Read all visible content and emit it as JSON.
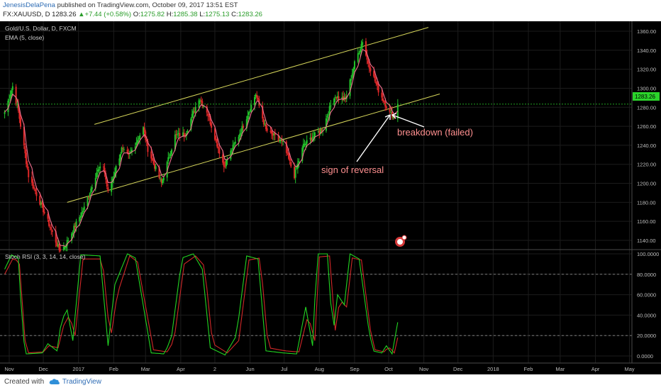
{
  "header": {
    "author": "JenesisDelaPena",
    "published_text": " published on TradingView.com, October 09, 2017 13:51 EST",
    "symbol": "FX:XAUUSD, D",
    "last": "1283.26",
    "change": "+7.44 (+0.58%)",
    "open_label": "O:",
    "open": "1275.82",
    "high_label": "H:",
    "high": "1285.38",
    "low_label": "L:",
    "low": "1275.13",
    "close_label": "C:",
    "close": "1283.26"
  },
  "legend": {
    "instrument": "Gold/U.S. Dollar, D, FXCM",
    "ema": "EMA (5, close)",
    "stoch": "Stoch RSI (3, 3, 14, 14, close)"
  },
  "annotations": {
    "breakdown": "breakdown (failed)",
    "reversal": "sign of reversal"
  },
  "price_badge": "1283.26",
  "footer": {
    "created_with": "Created with",
    "brand": "TradingView"
  },
  "colors": {
    "up": "#22c32a",
    "down": "#e02828",
    "ema": "#f07090",
    "channel": "#d6d65a",
    "stoch_k": "#22d422",
    "stoch_d": "#d02828",
    "annotation": "#ff9090",
    "badge": "#2bd42b"
  },
  "chart_data": [
    {
      "type": "candlestick",
      "title": "Gold/U.S. Dollar, D, FXCM",
      "y_ticks": [
        1140,
        1160,
        1180,
        1200,
        1220,
        1240,
        1260,
        1280,
        1300,
        1320,
        1340,
        1360
      ],
      "y_tick_labels": [
        "1140.00",
        "1160.00",
        "1180.00",
        "1200.00",
        "1220.00",
        "1240.00",
        "1260.00",
        "1280.00",
        "1300.00",
        "1320.00",
        "1340.00",
        "1360.00"
      ],
      "ylim": [
        1110,
        1372
      ],
      "x_tick_labels": [
        "Nov",
        "Dec",
        "2017",
        "Feb",
        "Mar",
        "Apr",
        "2",
        "Jun",
        "Jul",
        "Aug",
        "Sep",
        "Oct",
        "Nov",
        "Dec",
        "2018",
        "Feb",
        "Mar",
        "Apr",
        "May"
      ],
      "last_value": 1283.26,
      "close_anchors": [
        {
          "x": "2016-10-28",
          "y": 1275
        },
        {
          "x": "2016-11-04",
          "y": 1302
        },
        {
          "x": "2016-11-09",
          "y": 1276
        },
        {
          "x": "2016-11-18",
          "y": 1208
        },
        {
          "x": "2016-12-01",
          "y": 1172
        },
        {
          "x": "2016-12-15",
          "y": 1130
        },
        {
          "x": "2016-12-20",
          "y": 1134
        },
        {
          "x": "2017-01-06",
          "y": 1174
        },
        {
          "x": "2017-01-17",
          "y": 1212
        },
        {
          "x": "2017-01-23",
          "y": 1218
        },
        {
          "x": "2017-01-27",
          "y": 1190
        },
        {
          "x": "2017-02-08",
          "y": 1236
        },
        {
          "x": "2017-02-14",
          "y": 1228
        },
        {
          "x": "2017-02-27",
          "y": 1258
        },
        {
          "x": "2017-03-03",
          "y": 1236
        },
        {
          "x": "2017-03-15",
          "y": 1200
        },
        {
          "x": "2017-03-27",
          "y": 1250
        },
        {
          "x": "2017-04-05",
          "y": 1252
        },
        {
          "x": "2017-04-17",
          "y": 1290
        },
        {
          "x": "2017-04-24",
          "y": 1276
        },
        {
          "x": "2017-05-09",
          "y": 1218
        },
        {
          "x": "2017-05-25",
          "y": 1258
        },
        {
          "x": "2017-06-06",
          "y": 1294
        },
        {
          "x": "2017-06-15",
          "y": 1256
        },
        {
          "x": "2017-06-30",
          "y": 1242
        },
        {
          "x": "2017-07-10",
          "y": 1208
        },
        {
          "x": "2017-07-18",
          "y": 1240
        },
        {
          "x": "2017-08-04",
          "y": 1258
        },
        {
          "x": "2017-08-14",
          "y": 1292
        },
        {
          "x": "2017-08-24",
          "y": 1288
        },
        {
          "x": "2017-09-01",
          "y": 1326
        },
        {
          "x": "2017-09-08",
          "y": 1350
        },
        {
          "x": "2017-09-12",
          "y": 1330
        },
        {
          "x": "2017-09-22",
          "y": 1298
        },
        {
          "x": "2017-10-02",
          "y": 1274
        },
        {
          "x": "2017-10-06",
          "y": 1270
        },
        {
          "x": "2017-10-09",
          "y": 1283
        }
      ],
      "channel_lines": [
        {
          "name": "upper",
          "points": [
            {
              "x": "2017-01-15",
              "y": 1262
            },
            {
              "x": "2017-11-05",
              "y": 1364
            }
          ]
        },
        {
          "name": "lower",
          "points": [
            {
              "x": "2016-12-22",
              "y": 1180
            },
            {
              "x": "2017-11-15",
              "y": 1294
            }
          ]
        }
      ],
      "current_price_line": 1283.26,
      "ema": {
        "period": 5
      }
    },
    {
      "type": "line",
      "title": "Stoch RSI (3, 3, 14, 14, close)",
      "y_ticks": [
        0,
        20,
        40,
        60,
        80,
        100
      ],
      "y_tick_labels": [
        "0.0000",
        "20.0000",
        "40.0000",
        "60.0000",
        "80.0000",
        "100.0000"
      ],
      "ylim": [
        -3,
        103
      ],
      "reference_lines": [
        20,
        80
      ],
      "k_anchors": [
        {
          "x": "2016-10-28",
          "y": 85
        },
        {
          "x": "2016-11-03",
          "y": 99
        },
        {
          "x": "2016-11-09",
          "y": 96
        },
        {
          "x": "2016-11-13",
          "y": 20
        },
        {
          "x": "2016-11-16",
          "y": 2
        },
        {
          "x": "2016-11-30",
          "y": 3
        },
        {
          "x": "2016-12-05",
          "y": 12
        },
        {
          "x": "2016-12-13",
          "y": 5
        },
        {
          "x": "2016-12-17",
          "y": 35
        },
        {
          "x": "2016-12-22",
          "y": 45
        },
        {
          "x": "2016-12-27",
          "y": 15
        },
        {
          "x": "2017-01-03",
          "y": 99
        },
        {
          "x": "2017-01-20",
          "y": 98
        },
        {
          "x": "2017-01-27",
          "y": 10
        },
        {
          "x": "2017-02-02",
          "y": 70
        },
        {
          "x": "2017-02-13",
          "y": 100
        },
        {
          "x": "2017-02-20",
          "y": 96
        },
        {
          "x": "2017-03-06",
          "y": 3
        },
        {
          "x": "2017-03-18",
          "y": 2
        },
        {
          "x": "2017-03-24",
          "y": 20
        },
        {
          "x": "2017-04-02",
          "y": 96
        },
        {
          "x": "2017-04-12",
          "y": 100
        },
        {
          "x": "2017-04-20",
          "y": 85
        },
        {
          "x": "2017-04-27",
          "y": 8
        },
        {
          "x": "2017-05-10",
          "y": 1
        },
        {
          "x": "2017-05-20",
          "y": 20
        },
        {
          "x": "2017-05-29",
          "y": 98
        },
        {
          "x": "2017-06-08",
          "y": 95
        },
        {
          "x": "2017-06-15",
          "y": 5
        },
        {
          "x": "2017-06-30",
          "y": 3
        },
        {
          "x": "2017-07-12",
          "y": 2
        },
        {
          "x": "2017-07-20",
          "y": 48
        },
        {
          "x": "2017-07-26",
          "y": 10
        },
        {
          "x": "2017-07-30",
          "y": 100
        },
        {
          "x": "2017-08-08",
          "y": 100
        },
        {
          "x": "2017-08-13",
          "y": 20
        },
        {
          "x": "2017-08-17",
          "y": 60
        },
        {
          "x": "2017-08-23",
          "y": 50
        },
        {
          "x": "2017-08-28",
          "y": 100
        },
        {
          "x": "2017-09-05",
          "y": 95
        },
        {
          "x": "2017-09-13",
          "y": 30
        },
        {
          "x": "2017-09-17",
          "y": 5
        },
        {
          "x": "2017-09-25",
          "y": 3
        },
        {
          "x": "2017-09-29",
          "y": 10
        },
        {
          "x": "2017-10-04",
          "y": 2
        },
        {
          "x": "2017-10-09",
          "y": 33
        }
      ],
      "d_anchors": [
        {
          "x": "2016-10-28",
          "y": 80
        },
        {
          "x": "2016-11-05",
          "y": 97
        },
        {
          "x": "2016-11-10",
          "y": 90
        },
        {
          "x": "2016-11-15",
          "y": 15
        },
        {
          "x": "2016-11-18",
          "y": 3
        },
        {
          "x": "2016-12-01",
          "y": 4
        },
        {
          "x": "2016-12-06",
          "y": 10
        },
        {
          "x": "2016-12-14",
          "y": 8
        },
        {
          "x": "2016-12-19",
          "y": 30
        },
        {
          "x": "2016-12-24",
          "y": 40
        },
        {
          "x": "2016-12-29",
          "y": 20
        },
        {
          "x": "2017-01-05",
          "y": 95
        },
        {
          "x": "2017-01-22",
          "y": 95
        },
        {
          "x": "2017-01-29",
          "y": 15
        },
        {
          "x": "2017-02-04",
          "y": 60
        },
        {
          "x": "2017-02-15",
          "y": 98
        },
        {
          "x": "2017-02-22",
          "y": 92
        },
        {
          "x": "2017-03-08",
          "y": 6
        },
        {
          "x": "2017-03-20",
          "y": 4
        },
        {
          "x": "2017-03-26",
          "y": 15
        },
        {
          "x": "2017-04-04",
          "y": 90
        },
        {
          "x": "2017-04-14",
          "y": 98
        },
        {
          "x": "2017-04-22",
          "y": 88
        },
        {
          "x": "2017-04-29",
          "y": 12
        },
        {
          "x": "2017-05-12",
          "y": 3
        },
        {
          "x": "2017-05-22",
          "y": 15
        },
        {
          "x": "2017-05-31",
          "y": 94
        },
        {
          "x": "2017-06-10",
          "y": 96
        },
        {
          "x": "2017-06-17",
          "y": 8
        },
        {
          "x": "2017-07-02",
          "y": 5
        },
        {
          "x": "2017-07-14",
          "y": 4
        },
        {
          "x": "2017-07-22",
          "y": 40
        },
        {
          "x": "2017-07-28",
          "y": 15
        },
        {
          "x": "2017-08-01",
          "y": 97
        },
        {
          "x": "2017-08-10",
          "y": 98
        },
        {
          "x": "2017-08-15",
          "y": 25
        },
        {
          "x": "2017-08-19",
          "y": 55
        },
        {
          "x": "2017-08-25",
          "y": 48
        },
        {
          "x": "2017-08-30",
          "y": 96
        },
        {
          "x": "2017-09-07",
          "y": 94
        },
        {
          "x": "2017-09-15",
          "y": 25
        },
        {
          "x": "2017-09-19",
          "y": 6
        },
        {
          "x": "2017-09-27",
          "y": 4
        },
        {
          "x": "2017-10-01",
          "y": 9
        },
        {
          "x": "2017-10-06",
          "y": 3
        },
        {
          "x": "2017-10-09",
          "y": 18
        }
      ]
    }
  ]
}
